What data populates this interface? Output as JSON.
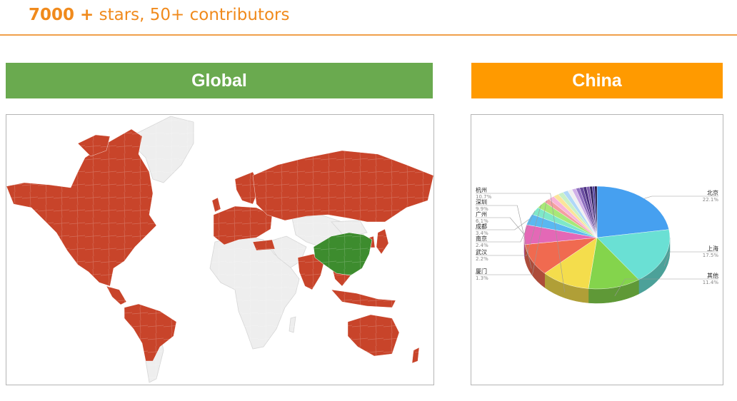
{
  "header": {
    "stars": "7000 +",
    "rest": " stars, 50+ contributors"
  },
  "banners": {
    "global": "Global",
    "china": "China"
  },
  "colors": {
    "accent_orange": "#f08a1c",
    "global_banner": "#6aaa4f",
    "china_banner": "#ff9a00",
    "map_highlight": "#c8442a",
    "map_china": "#3d8c2e",
    "map_other": "#eeeeee"
  },
  "chart_data": [
    {
      "type": "map",
      "title": "Global",
      "highlighted_regions": [
        "North America",
        "South America (partial)",
        "Europe",
        "Russia",
        "India",
        "Southeast Asia",
        "Japan",
        "Australia"
      ],
      "emphasized_region": "China"
    },
    {
      "type": "pie",
      "title": "China",
      "three_d": true,
      "slices": [
        {
          "label": "北京",
          "pct": "22.1%",
          "value": 22.1,
          "color": "#46a0f0"
        },
        {
          "label": "上海",
          "pct": "17.5%",
          "value": 17.5,
          "color": "#6ae0d4"
        },
        {
          "label": "其他",
          "pct": "11.4%",
          "value": 11.4,
          "color": "#84d44c"
        },
        {
          "label": "杭州",
          "pct": "10.7%",
          "value": 10.7,
          "color": "#f4dd4c"
        },
        {
          "label": "深圳",
          "pct": "9.9%",
          "value": 9.9,
          "color": "#f06a50"
        },
        {
          "label": "广州",
          "pct": "6.1%",
          "value": 6.1,
          "color": "#e468b6"
        },
        {
          "label": "成都",
          "pct": "3.4%",
          "value": 3.4,
          "color": "#5ab8f0"
        },
        {
          "label": "南京",
          "pct": "2.4%",
          "value": 2.4,
          "color": "#7ee8c8"
        },
        {
          "label": "武汉",
          "pct": "2.2%",
          "value": 2.2,
          "color": "#a8e878"
        },
        {
          "label": "厦门",
          "pct": "1.3%",
          "value": 1.3,
          "color": "#f4a0a0"
        }
      ],
      "small_slices": [
        {
          "value": 1.3,
          "color": "#f8b4d8"
        },
        {
          "value": 1.2,
          "color": "#fbe49a"
        },
        {
          "value": 1.2,
          "color": "#c8f0c8"
        },
        {
          "value": 1.1,
          "color": "#b0d8f8"
        },
        {
          "value": 1.0,
          "color": "#f0f0f0"
        },
        {
          "value": 0.9,
          "color": "#d0b0e8"
        },
        {
          "value": 0.8,
          "color": "#9070c0"
        },
        {
          "value": 0.8,
          "color": "#6a4ca0"
        },
        {
          "value": 0.7,
          "color": "#4a3080"
        },
        {
          "value": 0.7,
          "color": "#8060b0"
        },
        {
          "value": 0.6,
          "color": "#302060"
        },
        {
          "value": 0.5,
          "color": "#5040a0"
        },
        {
          "value": 0.5,
          "color": "#201040"
        }
      ]
    }
  ]
}
